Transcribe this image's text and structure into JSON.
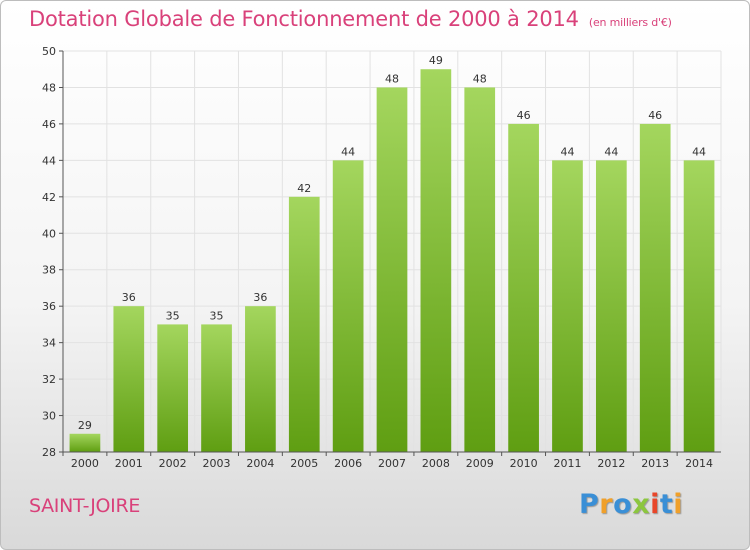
{
  "title": "Dotation Globale de Fonctionnement de 2000 à 2014",
  "unit": "(en milliers d'€)",
  "city": "SAINT-JOIRE",
  "logo": {
    "text": "Proxiti",
    "letters": [
      {
        "ch": "P",
        "color": "#3a8fd6"
      },
      {
        "ch": "r",
        "color": "#f0a02a"
      },
      {
        "ch": "o",
        "color": "#3a8fd6"
      },
      {
        "ch": "x",
        "color": "#8cc63f"
      },
      {
        "ch": "i",
        "color": "#e8462a"
      },
      {
        "ch": "t",
        "color": "#3a8fd6"
      },
      {
        "ch": "i",
        "color": "#f0a02a"
      }
    ]
  },
  "chart_data": {
    "type": "bar",
    "categories": [
      "2000",
      "2001",
      "2002",
      "2003",
      "2004",
      "2005",
      "2006",
      "2007",
      "2008",
      "2009",
      "2010",
      "2011",
      "2012",
      "2013",
      "2014"
    ],
    "values": [
      29,
      36,
      35,
      35,
      36,
      42,
      44,
      48,
      49,
      48,
      46,
      44,
      44,
      46,
      44
    ],
    "ylim": [
      28,
      50
    ],
    "yticks": [
      28,
      30,
      32,
      34,
      36,
      38,
      40,
      42,
      44,
      46,
      48,
      50
    ],
    "grid": true,
    "bar_color_top": "#a4d65e",
    "bar_color_bottom": "#5f9e12"
  }
}
